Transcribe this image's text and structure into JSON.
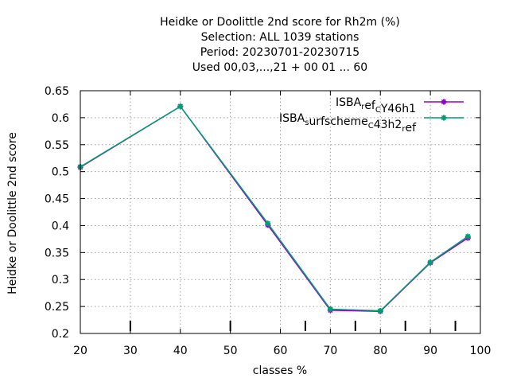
{
  "chart_data": {
    "type": "line",
    "title_lines": [
      "Heidke or Doolittle 2nd score  for Rh2m (%)",
      "Selection: ALL   1039 stations",
      "Period: 20230701-20230715",
      "Used  00,03,...,21  + 00 01 ... 60"
    ],
    "xlabel": "classes %",
    "ylabel": "Heidke or Doolittle 2nd score",
    "xlim": [
      20,
      100
    ],
    "ylim": [
      0.2,
      0.65
    ],
    "xticks": [
      "20",
      "30",
      "40",
      "50",
      "60",
      "70",
      "80",
      "90",
      "100"
    ],
    "yticks": [
      "0.2",
      "0.25",
      "0.3",
      "0.35",
      "0.4",
      "0.45",
      "0.5",
      "0.55",
      "0.6",
      "0.65"
    ],
    "grid": true,
    "legend_position": "top-right",
    "series": [
      {
        "name": "ISBA_ref_CY46h1",
        "legend_parts": [
          [
            "ISBA",
            ""
          ],
          [
            "r",
            "sub"
          ],
          [
            "ef",
            ""
          ],
          [
            "C",
            "sub"
          ],
          [
            "Y46h1",
            ""
          ]
        ],
        "color": "#9400d3",
        "x": [
          20,
          40,
          57.5,
          70,
          80,
          90,
          97.5
        ],
        "y": [
          0.508,
          0.621,
          0.401,
          0.243,
          0.241,
          0.331,
          0.377
        ]
      },
      {
        "name": "ISBA_surfscheme_C43h2_ref",
        "legend_parts": [
          [
            "ISBA",
            ""
          ],
          [
            "s",
            "sub"
          ],
          [
            "urfscheme",
            ""
          ],
          [
            "C",
            "sub"
          ],
          [
            "43h2",
            ""
          ],
          [
            "r",
            "sub"
          ],
          [
            "ef",
            ""
          ]
        ],
        "color": "#009e73",
        "x": [
          20,
          40,
          57.5,
          70,
          80,
          90,
          97.5
        ],
        "y": [
          0.509,
          0.621,
          0.404,
          0.245,
          0.242,
          0.332,
          0.38
        ]
      }
    ],
    "bottom_markers_x": [
      30,
      50,
      65,
      75,
      85,
      95
    ]
  }
}
